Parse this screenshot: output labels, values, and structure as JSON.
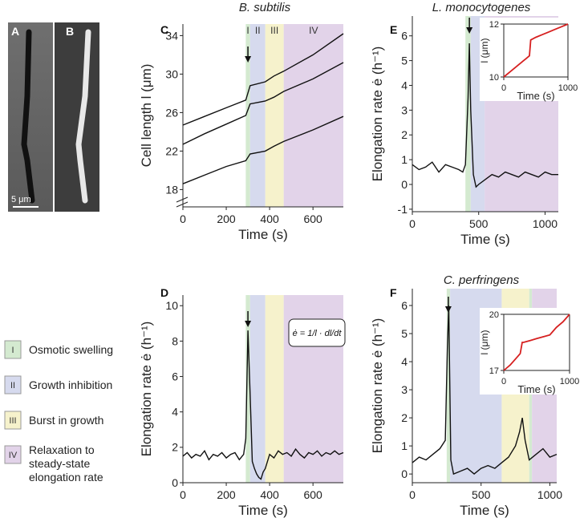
{
  "figure": {
    "panel_a": "A",
    "panel_b": "B",
    "scale_bar": "5 μm"
  },
  "legend": {
    "phases": [
      {
        "numeral": "I",
        "label": "Osmotic swelling",
        "color": "#d4ead0"
      },
      {
        "numeral": "II",
        "label": "Growth inhibition",
        "color": "#d6daee"
      },
      {
        "numeral": "III",
        "label": "Burst in growth",
        "color": "#f6f2cc"
      },
      {
        "numeral": "IV",
        "label": "Relaxation to steady-state elongation rate",
        "color": "#e2d3e9"
      }
    ]
  },
  "chart_data": [
    {
      "type": "line",
      "panel": "C",
      "title": "B. subtilis",
      "xlabel": "Time (s)",
      "ylabel": "Cell length l (μm)",
      "xlim": [
        0,
        740
      ],
      "ylim": [
        16.2,
        35.2
      ],
      "xticks": [
        0,
        200,
        400,
        600
      ],
      "yticks": [
        18,
        22,
        26,
        30,
        34
      ],
      "region_labels": true,
      "arrow_x": 300,
      "regions": [
        {
          "phase": 0,
          "start": 290,
          "end": 310
        },
        {
          "phase": 1,
          "start": 310,
          "end": 380
        },
        {
          "phase": 2,
          "start": 380,
          "end": 465
        },
        {
          "phase": 3,
          "start": 465,
          "end": 740
        }
      ],
      "x": [
        0,
        100,
        200,
        290,
        310,
        380,
        420,
        465,
        600,
        740
      ],
      "series": [
        {
          "color": "#111111",
          "values": [
            24.7,
            25.6,
            26.5,
            27.3,
            28.8,
            29.2,
            29.8,
            30.3,
            32.0,
            34.2
          ]
        },
        {
          "color": "#111111",
          "values": [
            22.7,
            23.8,
            24.8,
            25.7,
            26.9,
            27.2,
            27.6,
            28.2,
            29.5,
            31.2
          ]
        },
        {
          "color": "#111111",
          "values": [
            18.6,
            19.5,
            20.4,
            21.0,
            21.7,
            22.0,
            22.5,
            23.0,
            24.2,
            25.6
          ]
        }
      ]
    },
    {
      "type": "line",
      "panel": "D",
      "xlabel": "Time (s)",
      "ylabel": "Elongation rate ė (h⁻¹)",
      "annotation": "ė = 1/l · dl/dt",
      "xlim": [
        0,
        740
      ],
      "ylim": [
        0,
        10.6
      ],
      "xticks": [
        0,
        200,
        400,
        600
      ],
      "yticks": [
        0,
        2,
        4,
        6,
        8,
        10
      ],
      "arrow_x": 300,
      "regions": [
        {
          "phase": 0,
          "start": 290,
          "end": 310
        },
        {
          "phase": 1,
          "start": 310,
          "end": 380
        },
        {
          "phase": 2,
          "start": 380,
          "end": 465
        },
        {
          "phase": 3,
          "start": 465,
          "end": 740
        }
      ],
      "x": [
        0,
        20,
        40,
        60,
        80,
        100,
        120,
        140,
        160,
        180,
        200,
        220,
        240,
        260,
        280,
        290,
        300,
        310,
        320,
        330,
        340,
        350,
        360,
        370,
        380,
        400,
        420,
        440,
        460,
        480,
        500,
        520,
        540,
        560,
        580,
        600,
        620,
        640,
        660,
        680,
        700,
        720,
        740
      ],
      "series": [
        {
          "color": "#111111",
          "values": [
            1.5,
            1.7,
            1.4,
            1.6,
            1.5,
            1.8,
            1.3,
            1.6,
            1.5,
            1.7,
            1.4,
            1.6,
            1.7,
            1.3,
            1.6,
            2.5,
            8.6,
            5.0,
            1.2,
            0.8,
            0.5,
            0.3,
            0.2,
            0.6,
            0.8,
            1.6,
            1.4,
            1.8,
            1.6,
            1.7,
            1.5,
            1.9,
            1.6,
            1.4,
            1.7,
            1.6,
            1.8,
            1.5,
            1.7,
            1.6,
            1.8,
            1.6,
            1.7
          ]
        }
      ]
    },
    {
      "type": "line",
      "panel": "E",
      "title": "L. monocytogenes",
      "xlabel": "Time (s)",
      "ylabel": "Elongation rate ė (h⁻¹)",
      "xlim": [
        0,
        1100
      ],
      "ylim": [
        -1.1,
        6.8
      ],
      "xticks": [
        0,
        500,
        1000
      ],
      "yticks": [
        -1,
        0,
        1,
        2,
        3,
        4,
        5,
        6
      ],
      "arrow_x": 430,
      "regions": [
        {
          "phase": 0,
          "start": 400,
          "end": 440
        },
        {
          "phase": 1,
          "start": 440,
          "end": 545
        },
        {
          "phase": 3,
          "start": 545,
          "end": 1100
        }
      ],
      "x": [
        0,
        50,
        100,
        150,
        200,
        250,
        300,
        350,
        380,
        400,
        420,
        430,
        440,
        460,
        480,
        500,
        550,
        600,
        650,
        700,
        750,
        800,
        850,
        900,
        950,
        1000,
        1050,
        1100
      ],
      "series": [
        {
          "color": "#111111",
          "values": [
            0.8,
            0.6,
            0.7,
            0.9,
            0.5,
            0.8,
            0.7,
            0.6,
            0.5,
            0.8,
            3.5,
            5.7,
            3.0,
            0.4,
            -0.1,
            0.0,
            0.2,
            0.4,
            0.3,
            0.5,
            0.4,
            0.3,
            0.5,
            0.4,
            0.3,
            0.5,
            0.4,
            0.4
          ]
        }
      ],
      "inset": {
        "xlabel": "Time (s)",
        "ylabel": "l (μm)",
        "xlim": [
          0,
          1000
        ],
        "ylim": [
          10,
          12
        ],
        "xticks": [
          0,
          1000
        ],
        "yticks": [
          10,
          12
        ],
        "color": "#d62020",
        "x": [
          0,
          100,
          200,
          300,
          350,
          400,
          420,
          500,
          600,
          700,
          800,
          900,
          1000
        ],
        "values": [
          10.0,
          10.2,
          10.4,
          10.6,
          10.7,
          10.8,
          11.4,
          11.5,
          11.6,
          11.7,
          11.8,
          11.9,
          12.0
        ]
      }
    },
    {
      "type": "line",
      "panel": "F",
      "title": "C. perfringens",
      "xlabel": "Time (s)",
      "ylabel": "Elongation rate ė (h⁻¹)",
      "xlim": [
        0,
        1050
      ],
      "ylim": [
        -0.31,
        6.6
      ],
      "xticks": [
        0,
        500,
        1000
      ],
      "yticks": [
        0,
        1,
        2,
        3,
        4,
        5,
        6
      ],
      "arrow_x": 262,
      "regions": [
        {
          "phase": 0,
          "start": 250,
          "end": 275
        },
        {
          "phase": 1,
          "start": 275,
          "end": 650
        },
        {
          "phase": 2,
          "start": 650,
          "end": 850
        },
        {
          "phase": 0,
          "start": 850,
          "end": 870
        },
        {
          "phase": 3,
          "start": 870,
          "end": 1050
        }
      ],
      "x": [
        0,
        50,
        100,
        150,
        200,
        240,
        255,
        265,
        280,
        300,
        350,
        400,
        450,
        500,
        550,
        600,
        650,
        700,
        750,
        780,
        800,
        820,
        850,
        900,
        950,
        1000,
        1050
      ],
      "series": [
        {
          "color": "#111111",
          "values": [
            0.4,
            0.6,
            0.5,
            0.7,
            0.9,
            1.2,
            4.5,
            6.0,
            0.5,
            0.0,
            0.1,
            0.2,
            0.0,
            0.2,
            0.3,
            0.2,
            0.4,
            0.6,
            1.0,
            1.5,
            2.0,
            1.2,
            0.5,
            0.7,
            0.9,
            0.6,
            0.7
          ]
        }
      ],
      "inset": {
        "xlabel": "Time (s)",
        "ylabel": "l (μm)",
        "xlim": [
          0,
          1000
        ],
        "ylim": [
          17,
          20
        ],
        "xticks": [
          0,
          1000
        ],
        "yticks": [
          17,
          20
        ],
        "color": "#d62020",
        "x": [
          0,
          100,
          200,
          250,
          280,
          300,
          400,
          500,
          600,
          700,
          750,
          800,
          900,
          1000
        ],
        "values": [
          17.0,
          17.3,
          17.7,
          17.9,
          18.5,
          18.5,
          18.6,
          18.7,
          18.8,
          18.9,
          19.1,
          19.3,
          19.6,
          20.0
        ]
      }
    }
  ]
}
